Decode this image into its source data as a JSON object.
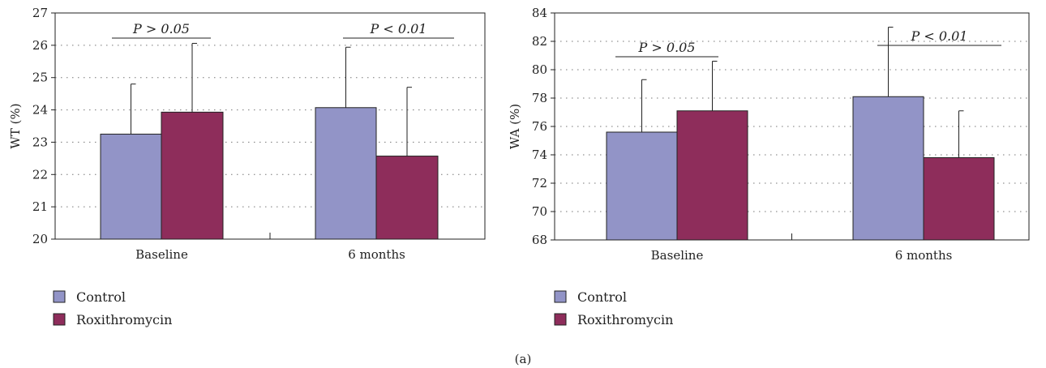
{
  "chart_data": [
    {
      "type": "bar",
      "ylabel": "WT (%)",
      "categories": [
        "Baseline",
        "6 months"
      ],
      "ylim": [
        20,
        27
      ],
      "yticks": [
        20,
        21,
        22,
        23,
        24,
        25,
        26,
        27
      ],
      "grid": true,
      "series": [
        {
          "name": "Control",
          "color": "#9294c7",
          "values": [
            23.25,
            24.07
          ],
          "errors": [
            1.55,
            1.87
          ]
        },
        {
          "name": "Roxithromycin",
          "color": "#8e2d5b",
          "values": [
            23.93,
            22.57
          ],
          "errors": [
            2.13,
            2.13
          ]
        }
      ],
      "annotations": [
        "P > 0.05",
        "P < 0.01"
      ],
      "legend_position": "bottom-left"
    },
    {
      "type": "bar",
      "ylabel": "WA (%)",
      "categories": [
        "Baseline",
        "6 months"
      ],
      "ylim": [
        68,
        84
      ],
      "yticks": [
        68,
        70,
        72,
        74,
        76,
        78,
        80,
        82,
        84
      ],
      "grid": true,
      "series": [
        {
          "name": "Control",
          "color": "#9294c7",
          "values": [
            75.6,
            78.1
          ],
          "errors": [
            3.7,
            4.9
          ]
        },
        {
          "name": "Roxithromycin",
          "color": "#8e2d5b",
          "values": [
            77.1,
            73.8
          ],
          "errors": [
            3.5,
            3.3
          ]
        }
      ],
      "annotations": [
        "P > 0.05",
        "P < 0.01"
      ],
      "legend_position": "bottom-left"
    }
  ],
  "caption": "(a)"
}
